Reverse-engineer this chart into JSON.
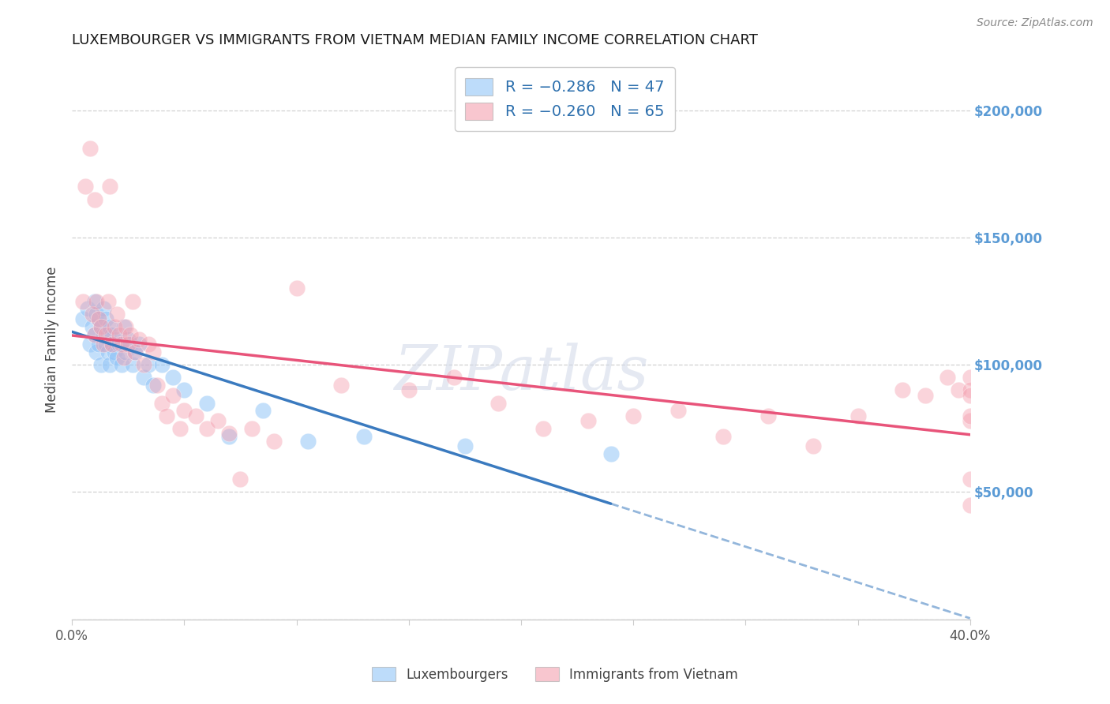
{
  "title": "LUXEMBOURGER VS IMMIGRANTS FROM VIETNAM MEDIAN FAMILY INCOME CORRELATION CHART",
  "source": "Source: ZipAtlas.com",
  "ylabel": "Median Family Income",
  "xlim": [
    0.0,
    0.4
  ],
  "ylim": [
    0,
    220000
  ],
  "yticks": [
    0,
    50000,
    100000,
    150000,
    200000
  ],
  "ytick_labels": [
    "",
    "$50,000",
    "$100,000",
    "$150,000",
    "$200,000"
  ],
  "xticks": [
    0.0,
    0.05,
    0.1,
    0.15,
    0.2,
    0.25,
    0.3,
    0.35,
    0.4
  ],
  "xtick_labels": [
    "0.0%",
    "",
    "",
    "",
    "",
    "",
    "",
    "",
    "40.0%"
  ],
  "blue_color": "#92c5f7",
  "pink_color": "#f4a0b0",
  "blue_line_color": "#3a7abf",
  "pink_line_color": "#e8547a",
  "blue_scatter_x": [
    0.005,
    0.007,
    0.008,
    0.009,
    0.01,
    0.01,
    0.011,
    0.011,
    0.012,
    0.012,
    0.013,
    0.013,
    0.014,
    0.014,
    0.015,
    0.015,
    0.016,
    0.016,
    0.017,
    0.017,
    0.018,
    0.018,
    0.019,
    0.02,
    0.02,
    0.021,
    0.022,
    0.023,
    0.024,
    0.025,
    0.026,
    0.027,
    0.028,
    0.03,
    0.032,
    0.034,
    0.036,
    0.04,
    0.045,
    0.05,
    0.06,
    0.07,
    0.085,
    0.105,
    0.13,
    0.175,
    0.24
  ],
  "blue_scatter_y": [
    118000,
    122000,
    108000,
    115000,
    125000,
    112000,
    120000,
    105000,
    118000,
    108000,
    115000,
    100000,
    112000,
    122000,
    118000,
    108000,
    112000,
    105000,
    115000,
    100000,
    108000,
    112000,
    105000,
    110000,
    103000,
    108000,
    100000,
    115000,
    105000,
    110000,
    108000,
    100000,
    105000,
    108000,
    95000,
    100000,
    92000,
    100000,
    95000,
    90000,
    85000,
    72000,
    82000,
    70000,
    72000,
    68000,
    65000
  ],
  "pink_scatter_x": [
    0.005,
    0.006,
    0.008,
    0.009,
    0.01,
    0.01,
    0.011,
    0.012,
    0.013,
    0.014,
    0.015,
    0.016,
    0.017,
    0.018,
    0.019,
    0.02,
    0.021,
    0.022,
    0.023,
    0.024,
    0.025,
    0.026,
    0.027,
    0.028,
    0.03,
    0.032,
    0.034,
    0.036,
    0.038,
    0.04,
    0.042,
    0.045,
    0.048,
    0.05,
    0.055,
    0.06,
    0.065,
    0.07,
    0.075,
    0.08,
    0.09,
    0.1,
    0.12,
    0.15,
    0.17,
    0.19,
    0.21,
    0.23,
    0.25,
    0.27,
    0.29,
    0.31,
    0.33,
    0.35,
    0.37,
    0.38,
    0.39,
    0.395,
    0.4,
    0.4,
    0.4,
    0.4,
    0.4,
    0.4,
    0.4
  ],
  "pink_scatter_y": [
    125000,
    170000,
    185000,
    120000,
    165000,
    112000,
    125000,
    118000,
    115000,
    108000,
    112000,
    125000,
    170000,
    108000,
    115000,
    120000,
    112000,
    108000,
    103000,
    115000,
    108000,
    112000,
    125000,
    105000,
    110000,
    100000,
    108000,
    105000,
    92000,
    85000,
    80000,
    88000,
    75000,
    82000,
    80000,
    75000,
    78000,
    73000,
    55000,
    75000,
    70000,
    130000,
    92000,
    90000,
    95000,
    85000,
    75000,
    78000,
    80000,
    82000,
    72000,
    80000,
    68000,
    80000,
    90000,
    88000,
    95000,
    90000,
    78000,
    55000,
    95000,
    90000,
    88000,
    80000,
    45000
  ],
  "watermark": "ZIPatlas",
  "background_color": "#ffffff",
  "grid_color": "#cccccc",
  "right_axis_color": "#5b9bd5",
  "blue_line_solid_end": 0.24,
  "pink_line_end": 0.4
}
